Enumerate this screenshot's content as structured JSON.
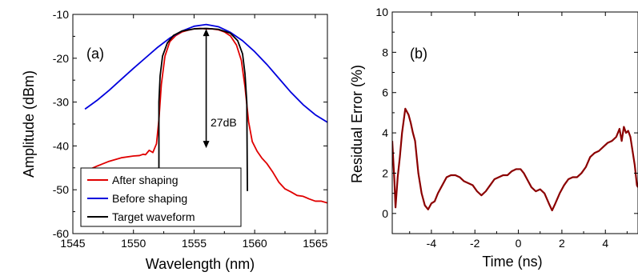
{
  "chart_data": [
    {
      "id": "a",
      "type": "line",
      "panel_label": "(a)",
      "xlabel": "Wavelength (nm)",
      "ylabel": "Amplitude (dBm)",
      "xlim": [
        1545,
        1566
      ],
      "ylim": [
        -60,
        -10
      ],
      "xticks": [
        1545,
        1550,
        1555,
        1560,
        1565
      ],
      "yticks": [
        -60,
        -50,
        -40,
        -30,
        -20,
        -10
      ],
      "grid": false,
      "legend": "bottom-left",
      "annotation": "27dB",
      "arrow": {
        "x": 1556.0,
        "y_top": -13.3,
        "y_bottom": -40.5
      },
      "series": [
        {
          "name": "After shaping",
          "color": "#e00000",
          "points": [
            [
              1546.0,
              -45.8
            ],
            [
              1547.0,
              -44.6
            ],
            [
              1548.0,
              -43.5
            ],
            [
              1549.0,
              -42.7
            ],
            [
              1550.0,
              -42.3
            ],
            [
              1550.5,
              -42.2
            ],
            [
              1550.8,
              -41.9
            ],
            [
              1551.0,
              -42.0
            ],
            [
              1551.3,
              -41.0
            ],
            [
              1551.6,
              -41.5
            ],
            [
              1551.9,
              -39.5
            ],
            [
              1552.1,
              -34.0
            ],
            [
              1552.3,
              -26.0
            ],
            [
              1552.6,
              -19.5
            ],
            [
              1553.0,
              -16.2
            ],
            [
              1553.5,
              -14.8
            ],
            [
              1554.0,
              -14.0
            ],
            [
              1554.5,
              -13.6
            ],
            [
              1555.0,
              -13.3
            ],
            [
              1555.5,
              -13.2
            ],
            [
              1556.0,
              -13.3
            ],
            [
              1556.5,
              -13.3
            ],
            [
              1557.0,
              -13.5
            ],
            [
              1557.5,
              -14.0
            ],
            [
              1558.0,
              -14.9
            ],
            [
              1558.5,
              -17.0
            ],
            [
              1558.9,
              -20.5
            ],
            [
              1559.2,
              -26.5
            ],
            [
              1559.5,
              -34.5
            ],
            [
              1559.8,
              -39.0
            ],
            [
              1560.2,
              -41.2
            ],
            [
              1560.6,
              -42.8
            ],
            [
              1561.0,
              -44.0
            ],
            [
              1561.5,
              -46.0
            ],
            [
              1562.0,
              -48.3
            ],
            [
              1562.5,
              -49.8
            ],
            [
              1563.0,
              -50.5
            ],
            [
              1563.5,
              -51.3
            ],
            [
              1564.0,
              -51.5
            ],
            [
              1564.5,
              -52.1
            ],
            [
              1565.0,
              -52.6
            ],
            [
              1565.5,
              -52.6
            ],
            [
              1566.0,
              -53.0
            ]
          ]
        },
        {
          "name": "Before shaping",
          "color": "#0000dd",
          "points": [
            [
              1546.0,
              -31.6
            ],
            [
              1547.0,
              -29.6
            ],
            [
              1548.0,
              -27.3
            ],
            [
              1549.0,
              -24.8
            ],
            [
              1550.0,
              -22.3
            ],
            [
              1551.0,
              -19.9
            ],
            [
              1552.0,
              -17.5
            ],
            [
              1553.0,
              -15.4
            ],
            [
              1554.0,
              -13.8
            ],
            [
              1555.0,
              -12.7
            ],
            [
              1556.0,
              -12.3
            ],
            [
              1557.0,
              -12.8
            ],
            [
              1558.0,
              -14.1
            ],
            [
              1559.0,
              -16.0
            ],
            [
              1560.0,
              -18.5
            ],
            [
              1561.0,
              -21.4
            ],
            [
              1562.0,
              -24.6
            ],
            [
              1563.0,
              -27.8
            ],
            [
              1564.0,
              -30.6
            ],
            [
              1565.0,
              -32.9
            ],
            [
              1566.0,
              -34.6
            ]
          ]
        },
        {
          "name": "Target waveform",
          "color": "#000000",
          "points": [
            [
              1552.1,
              -50.3
            ],
            [
              1552.1,
              -30.0
            ],
            [
              1552.2,
              -24.0
            ],
            [
              1552.4,
              -19.5
            ],
            [
              1552.8,
              -16.5
            ],
            [
              1553.3,
              -14.8
            ],
            [
              1554.0,
              -13.8
            ],
            [
              1555.0,
              -13.3
            ],
            [
              1556.0,
              -13.2
            ],
            [
              1557.0,
              -13.4
            ],
            [
              1558.0,
              -14.3
            ],
            [
              1558.6,
              -16.0
            ],
            [
              1559.0,
              -19.0
            ],
            [
              1559.2,
              -23.5
            ],
            [
              1559.35,
              -30.0
            ],
            [
              1559.4,
              -50.3
            ]
          ]
        }
      ]
    },
    {
      "id": "b",
      "type": "line",
      "panel_label": "(b)",
      "xlabel": "Time (ns)",
      "ylabel": "Residual Error (%)",
      "xlim": [
        -5.8,
        5.5
      ],
      "ylim": [
        -1,
        10
      ],
      "xticks": [
        -4,
        -2,
        0,
        2,
        4
      ],
      "yticks": [
        0,
        2,
        4,
        6,
        8,
        10
      ],
      "grid": false,
      "series": [
        {
          "name": "",
          "color": "#8b0000",
          "points": [
            [
              -5.8,
              3.6
            ],
            [
              -5.7,
              1.6
            ],
            [
              -5.65,
              0.3
            ],
            [
              -5.55,
              1.8
            ],
            [
              -5.45,
              2.8
            ],
            [
              -5.35,
              4.0
            ],
            [
              -5.2,
              5.2
            ],
            [
              -5.05,
              4.9
            ],
            [
              -4.95,
              4.5
            ],
            [
              -4.85,
              4.0
            ],
            [
              -4.75,
              3.6
            ],
            [
              -4.6,
              2.0
            ],
            [
              -4.45,
              1.0
            ],
            [
              -4.3,
              0.4
            ],
            [
              -4.15,
              0.2
            ],
            [
              -4.0,
              0.5
            ],
            [
              -3.85,
              0.6
            ],
            [
              -3.7,
              1.0
            ],
            [
              -3.5,
              1.4
            ],
            [
              -3.3,
              1.8
            ],
            [
              -3.1,
              1.9
            ],
            [
              -2.9,
              1.9
            ],
            [
              -2.7,
              1.8
            ],
            [
              -2.5,
              1.6
            ],
            [
              -2.3,
              1.5
            ],
            [
              -2.1,
              1.4
            ],
            [
              -1.9,
              1.1
            ],
            [
              -1.7,
              0.9
            ],
            [
              -1.5,
              1.1
            ],
            [
              -1.3,
              1.4
            ],
            [
              -1.1,
              1.7
            ],
            [
              -0.9,
              1.8
            ],
            [
              -0.7,
              1.9
            ],
            [
              -0.5,
              1.9
            ],
            [
              -0.3,
              2.1
            ],
            [
              -0.1,
              2.2
            ],
            [
              0.1,
              2.2
            ],
            [
              0.25,
              2.0
            ],
            [
              0.4,
              1.7
            ],
            [
              0.6,
              1.3
            ],
            [
              0.8,
              1.1
            ],
            [
              1.0,
              1.2
            ],
            [
              1.2,
              1.0
            ],
            [
              1.4,
              0.5
            ],
            [
              1.55,
              0.15
            ],
            [
              1.7,
              0.5
            ],
            [
              1.9,
              1.0
            ],
            [
              2.1,
              1.4
            ],
            [
              2.3,
              1.7
            ],
            [
              2.5,
              1.8
            ],
            [
              2.7,
              1.8
            ],
            [
              2.9,
              2.0
            ],
            [
              3.1,
              2.3
            ],
            [
              3.3,
              2.8
            ],
            [
              3.5,
              3.0
            ],
            [
              3.7,
              3.1
            ],
            [
              3.9,
              3.3
            ],
            [
              4.1,
              3.5
            ],
            [
              4.3,
              3.6
            ],
            [
              4.5,
              3.8
            ],
            [
              4.65,
              4.2
            ],
            [
              4.75,
              3.6
            ],
            [
              4.85,
              4.3
            ],
            [
              4.95,
              4.0
            ],
            [
              5.05,
              4.1
            ],
            [
              5.15,
              3.8
            ],
            [
              5.25,
              3.1
            ],
            [
              5.35,
              2.4
            ],
            [
              5.45,
              1.4
            ],
            [
              5.5,
              1.3
            ]
          ]
        }
      ]
    }
  ]
}
